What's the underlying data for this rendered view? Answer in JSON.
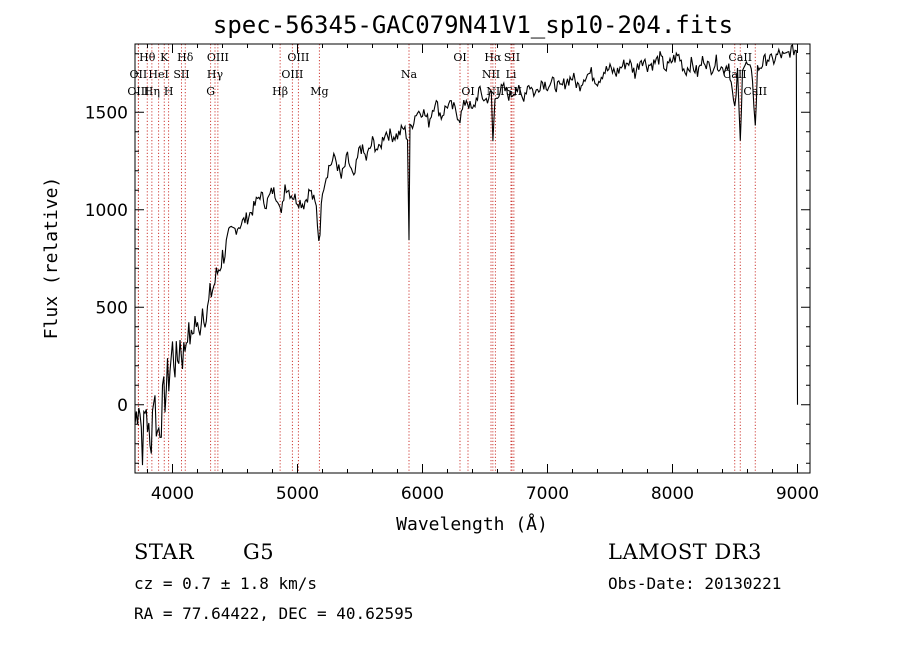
{
  "chart_data": {
    "type": "line",
    "title": "spec-56345-GAC079N41V1_sp10-204.fits",
    "xlabel": "Wavelength (Å)",
    "ylabel": "Flux (relative)",
    "xlim": [
      3700,
      9100
    ],
    "ylim": [
      -350,
      1850
    ],
    "x_ticks": [
      4000,
      5000,
      6000,
      7000,
      8000,
      9000
    ],
    "y_ticks": [
      0,
      500,
      1000,
      1500
    ],
    "x_tick_labels": [
      "4000",
      "5000",
      "6000",
      "7000",
      "8000",
      "9000"
    ],
    "y_tick_labels": [
      "0",
      "500",
      "1000",
      "1500"
    ],
    "series": [
      {
        "name": "flux",
        "color": "#000000",
        "x": [
          3700,
          3730,
          3760,
          3790,
          3820,
          3850,
          3880,
          3910,
          3940,
          3970,
          4000,
          4030,
          4060,
          4090,
          4120,
          4150,
          4180,
          4210,
          4240,
          4270,
          4300,
          4330,
          4360,
          4400,
          4450,
          4500,
          4550,
          4600,
          4650,
          4700,
          4750,
          4800,
          4850,
          4870,
          4900,
          4950,
          5000,
          5050,
          5100,
          5150,
          5170,
          5180,
          5200,
          5250,
          5300,
          5350,
          5400,
          5450,
          5500,
          5550,
          5600,
          5650,
          5700,
          5750,
          5800,
          5850,
          5880,
          5892,
          5900,
          5950,
          6000,
          6050,
          6100,
          6150,
          6200,
          6250,
          6300,
          6350,
          6400,
          6450,
          6500,
          6550,
          6563,
          6580,
          6600,
          6650,
          6700,
          6750,
          6800,
          6850,
          6900,
          6950,
          7000,
          7050,
          7100,
          7150,
          7200,
          7250,
          7300,
          7350,
          7400,
          7450,
          7500,
          7550,
          7600,
          7650,
          7700,
          7750,
          7800,
          7850,
          7900,
          7950,
          8000,
          8050,
          8100,
          8150,
          8200,
          8250,
          8300,
          8350,
          8400,
          8450,
          8498,
          8520,
          8542,
          8560,
          8600,
          8640,
          8662,
          8680,
          8720,
          8760,
          8800,
          8850,
          8900,
          8950,
          8990,
          9000
        ],
        "values": [
          -100,
          50,
          -200,
          0,
          -250,
          80,
          -150,
          -50,
          60,
          150,
          280,
          200,
          320,
          250,
          380,
          330,
          440,
          360,
          500,
          440,
          560,
          610,
          680,
          760,
          840,
          900,
          930,
          960,
          1010,
          1080,
          1030,
          1100,
          1060,
          960,
          1130,
          1080,
          1050,
          1030,
          1100,
          1010,
          850,
          900,
          1110,
          1220,
          1270,
          1160,
          1270,
          1150,
          1330,
          1260,
          1350,
          1300,
          1400,
          1380,
          1380,
          1420,
          1370,
          850,
          1410,
          1500,
          1510,
          1450,
          1560,
          1480,
          1540,
          1520,
          1470,
          1570,
          1500,
          1610,
          1560,
          1590,
          1350,
          1560,
          1600,
          1620,
          1580,
          1630,
          1570,
          1650,
          1590,
          1660,
          1640,
          1650,
          1620,
          1660,
          1680,
          1630,
          1690,
          1700,
          1660,
          1710,
          1720,
          1700,
          1740,
          1760,
          1700,
          1780,
          1740,
          1750,
          1780,
          1720,
          1770,
          1790,
          1710,
          1750,
          1700,
          1780,
          1720,
          1760,
          1720,
          1750,
          1500,
          1700,
          1340,
          1740,
          1740,
          1680,
          1420,
          1720,
          1750,
          1780,
          1760,
          1800,
          1780,
          1820,
          1820,
          0
        ]
      }
    ],
    "line_markers": [
      {
        "label": "Hθ",
        "x": 3798,
        "row": 0
      },
      {
        "label": "OII",
        "x": 3727,
        "row": 1
      },
      {
        "label": "OIII",
        "x": 3727,
        "row": 2
      },
      {
        "label": "K",
        "x": 3934,
        "row": 0
      },
      {
        "label": "HeI",
        "x": 3889,
        "row": 1
      },
      {
        "label": "Hη",
        "x": 3835,
        "row": 2
      },
      {
        "label": "H",
        "x": 3969,
        "row": 2
      },
      {
        "label": "SII",
        "x": 4072,
        "row": 1
      },
      {
        "label": "Hδ",
        "x": 4102,
        "row": 0
      },
      {
        "label": "OIII",
        "x": 4363,
        "row": 0
      },
      {
        "label": "Hγ",
        "x": 4340,
        "row": 1
      },
      {
        "label": "G",
        "x": 4305,
        "row": 2
      },
      {
        "label": "OIII",
        "x": 5007,
        "row": 0
      },
      {
        "label": "OIII",
        "x": 4959,
        "row": 1
      },
      {
        "label": "Hβ",
        "x": 4861,
        "row": 2
      },
      {
        "label": "Mg",
        "x": 5175,
        "row": 2
      },
      {
        "label": "Na",
        "x": 5892,
        "row": 1
      },
      {
        "label": "OI",
        "x": 6300,
        "row": 0
      },
      {
        "label": "OI",
        "x": 6364,
        "row": 2
      },
      {
        "label": "Hα",
        "x": 6563,
        "row": 0
      },
      {
        "label": "SII",
        "x": 6716,
        "row": 0
      },
      {
        "label": "NII",
        "x": 6548,
        "row": 1
      },
      {
        "label": "Li",
        "x": 6708,
        "row": 1
      },
      {
        "label": "NII",
        "x": 6583,
        "row": 2
      },
      {
        "label": "SII",
        "x": 6731,
        "row": 2
      },
      {
        "label": "CaII",
        "x": 8542,
        "row": 0
      },
      {
        "label": "CaII",
        "x": 8498,
        "row": 1
      },
      {
        "label": "CaII",
        "x": 8662,
        "row": 2
      }
    ]
  },
  "info": {
    "object_class": "STAR",
    "subclass": "G5",
    "survey": "LAMOST DR3",
    "cz": "cz = 0.7 ± 1.8 km/s",
    "obs_date": "Obs-Date: 20130221",
    "coords": "RA =  77.64422, DEC =  40.62595"
  }
}
